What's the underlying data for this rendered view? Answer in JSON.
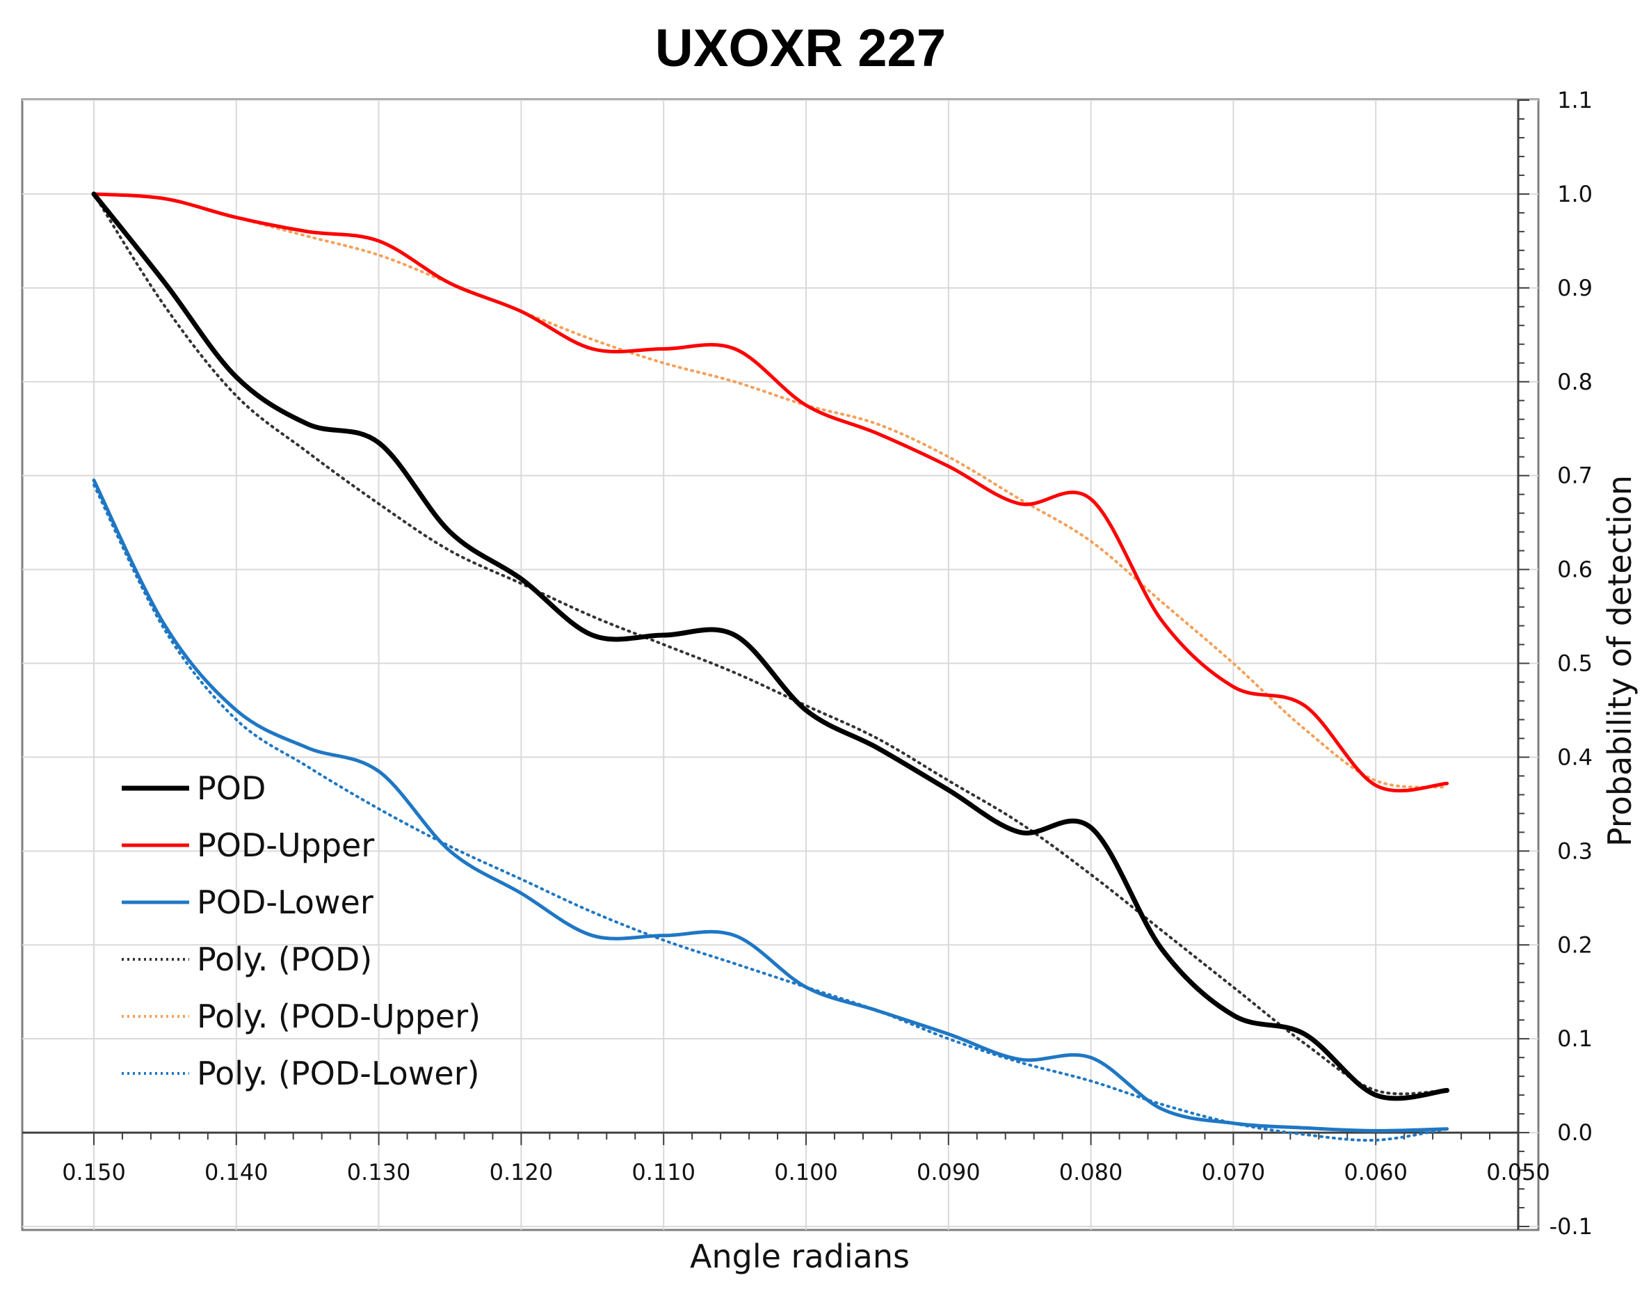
{
  "chart_data": {
    "type": "line",
    "title": "UXOXR 227",
    "xlabel": "Angle radians",
    "ylabel": "Probability of detection",
    "xlim": [
      0.15,
      0.05
    ],
    "ylim": [
      -0.1,
      1.1
    ],
    "x_ticks": [
      "0.150",
      "0.140",
      "0.130",
      "0.120",
      "0.110",
      "0.100",
      "0.090",
      "0.080",
      "0.070",
      "0.060",
      "0.050"
    ],
    "x_tick_values": [
      0.15,
      0.14,
      0.13,
      0.12,
      0.11,
      0.1,
      0.09,
      0.08,
      0.07,
      0.06,
      0.05
    ],
    "y_ticks": [
      "-0.1",
      "0.0",
      "0.1",
      "0.2",
      "0.3",
      "0.4",
      "0.5",
      "0.6",
      "0.7",
      "0.8",
      "0.9",
      "1.0",
      "1.1"
    ],
    "y_tick_values": [
      -0.1,
      0.0,
      0.1,
      0.2,
      0.3,
      0.4,
      0.5,
      0.6,
      0.7,
      0.8,
      0.9,
      1.0,
      1.1
    ],
    "grid": true,
    "legend_position": "bottom-left",
    "x": [
      0.15,
      0.145,
      0.14,
      0.135,
      0.13,
      0.125,
      0.12,
      0.115,
      0.11,
      0.105,
      0.1,
      0.095,
      0.09,
      0.085,
      0.08,
      0.075,
      0.07,
      0.065,
      0.06,
      0.055
    ],
    "series": [
      {
        "name": "POD",
        "color": "#000000",
        "style": "solid",
        "values": [
          1.0,
          0.905,
          0.805,
          0.755,
          0.735,
          0.64,
          0.59,
          0.53,
          0.53,
          0.53,
          0.45,
          0.41,
          0.365,
          0.32,
          0.325,
          0.195,
          0.125,
          0.105,
          0.04,
          0.045
        ]
      },
      {
        "name": "POD-Upper",
        "color": "#ff0000",
        "style": "solid",
        "values": [
          1.0,
          0.995,
          0.975,
          0.96,
          0.95,
          0.905,
          0.875,
          0.835,
          0.835,
          0.835,
          0.775,
          0.745,
          0.71,
          0.67,
          0.675,
          0.545,
          0.475,
          0.455,
          0.37,
          0.372
        ]
      },
      {
        "name": "POD-Lower",
        "color": "#1f77c4",
        "style": "solid",
        "values": [
          0.695,
          0.54,
          0.45,
          0.41,
          0.385,
          0.3,
          0.255,
          0.21,
          0.21,
          0.21,
          0.155,
          0.13,
          0.105,
          0.078,
          0.08,
          0.025,
          0.01,
          0.005,
          0.002,
          0.004
        ]
      },
      {
        "name": "Poly. (POD)",
        "color": "#333333",
        "style": "dotted",
        "values": [
          1.0,
          0.88,
          0.785,
          0.725,
          0.67,
          0.62,
          0.585,
          0.55,
          0.52,
          0.49,
          0.455,
          0.42,
          0.375,
          0.33,
          0.275,
          0.215,
          0.155,
          0.095,
          0.045,
          0.045
        ]
      },
      {
        "name": "Poly. (POD-Upper)",
        "color": "#f5a05a",
        "style": "dotted",
        "values": [
          1.0,
          0.995,
          0.975,
          0.955,
          0.935,
          0.905,
          0.875,
          0.845,
          0.82,
          0.8,
          0.775,
          0.755,
          0.72,
          0.675,
          0.63,
          0.565,
          0.5,
          0.43,
          0.375,
          0.368
        ]
      },
      {
        "name": "Poly. (POD-Lower)",
        "color": "#1f77c4",
        "style": "dotted",
        "values": [
          0.69,
          0.535,
          0.44,
          0.39,
          0.345,
          0.305,
          0.27,
          0.235,
          0.205,
          0.18,
          0.155,
          0.13,
          0.1,
          0.075,
          0.055,
          0.03,
          0.01,
          -0.002,
          -0.008,
          0.004
        ]
      }
    ]
  }
}
